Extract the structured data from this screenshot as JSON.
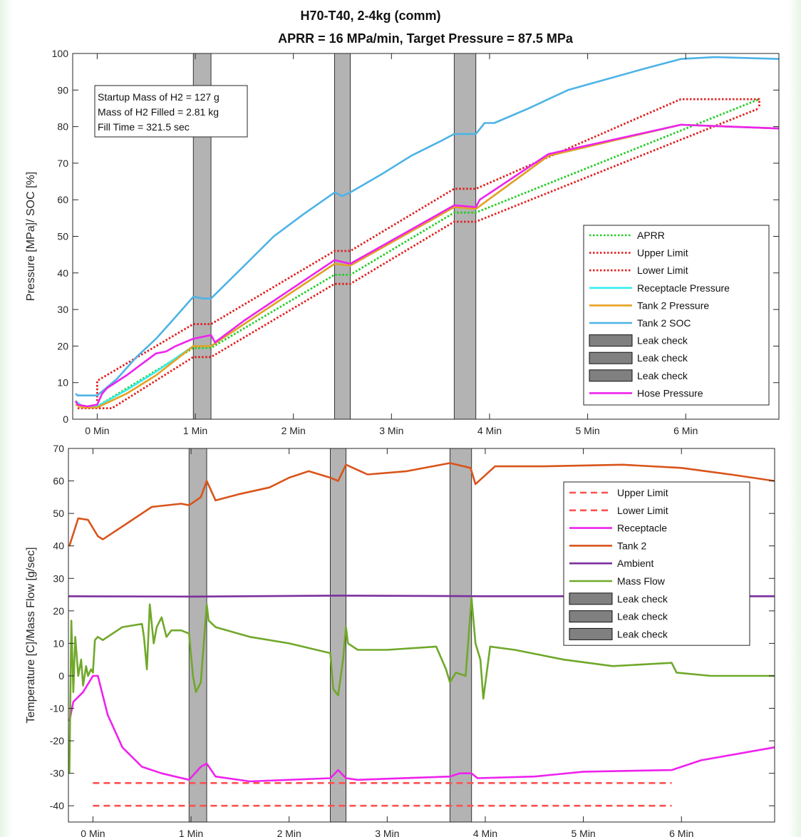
{
  "figure": {
    "title_line1": "H70-T40, 2-4kg (comm)",
    "title_line2": "APRR = 16 MPa/min, Target Pressure = 87.5 MPa"
  },
  "chart_data": [
    {
      "type": "line",
      "ylabel": "Pressure [MPa]/ SOC [%]",
      "xlim": [
        -0.25,
        6.95
      ],
      "ylim": [
        0,
        100
      ],
      "x_ticks": [
        0,
        1,
        2,
        3,
        4,
        5,
        6
      ],
      "x_tick_labels": [
        "0 Min",
        "1 Min",
        "2 Min",
        "3 Min",
        "4 Min",
        "5 Min",
        "6 Min"
      ],
      "y_ticks": [
        0,
        10,
        20,
        30,
        40,
        50,
        60,
        70,
        80,
        90,
        100
      ],
      "grid": false,
      "legend_position": "bottom-right",
      "annotation": {
        "lines": [
          "Startup Mass of H2 = 127 g",
          "Mass of H2 Filled = 2.81 kg",
          "Fill Time = 321.5 sec"
        ]
      },
      "leak_checks": [
        [
          0.98,
          1.16
        ],
        [
          2.42,
          2.58
        ],
        [
          3.64,
          3.86
        ]
      ],
      "series": [
        {
          "name": "APRR",
          "color": "#22cc22",
          "style": "dotted",
          "x": [
            0,
            0.98,
            1.16,
            2.42,
            2.58,
            3.64,
            3.86,
            6.75
          ],
          "y": [
            3.5,
            19.5,
            19.5,
            39.5,
            39.5,
            56.5,
            56.5,
            87.5
          ]
        },
        {
          "name": "Upper Limit",
          "color": "#e02020",
          "style": "dotted",
          "x": [
            0,
            0,
            0.98,
            1.16,
            2.42,
            2.58,
            3.64,
            3.86,
            5.95,
            6.75,
            6.75
          ],
          "y": [
            5,
            10.5,
            26,
            26,
            46,
            46,
            63,
            63,
            87.5,
            87.5,
            85
          ]
        },
        {
          "name": "Lower Limit",
          "color": "#e02020",
          "style": "dotted",
          "x": [
            -0.2,
            0.15,
            0.98,
            1.16,
            2.42,
            2.58,
            3.64,
            3.86,
            6.75
          ],
          "y": [
            3,
            3,
            17,
            17,
            37,
            37,
            54,
            54,
            85
          ]
        },
        {
          "name": "Receptacle Pressure",
          "color": "#33eeee",
          "style": "solid",
          "x": [
            -0.22,
            -0.15,
            0,
            0.3,
            0.6,
            0.98,
            1.16,
            2.42,
            2.58,
            3.64,
            3.86,
            4.6,
            5.95,
            6.95
          ],
          "y": [
            5,
            3.5,
            3.5,
            8,
            13,
            20,
            20,
            42.5,
            42,
            58,
            57.5,
            72,
            80.5,
            79.5
          ]
        },
        {
          "name": "Tank 2 Pressure",
          "color": "#e8a020",
          "style": "solid",
          "x": [
            -0.22,
            -0.15,
            0,
            0.3,
            0.6,
            0.98,
            1.16,
            2.42,
            2.58,
            3.64,
            3.86,
            4.6,
            5.95,
            6.95
          ],
          "y": [
            4,
            3.2,
            3.2,
            7,
            12,
            20,
            20,
            42.5,
            42,
            58,
            57.5,
            72,
            80.5,
            79.5
          ]
        },
        {
          "name": "Tank 2 SOC",
          "color": "#4db3e6",
          "style": "solid",
          "x": [
            -0.22,
            -0.2,
            0,
            0.2,
            0.4,
            0.6,
            0.8,
            0.98,
            1.08,
            1.16,
            1.5,
            1.8,
            2.1,
            2.42,
            2.5,
            2.58,
            2.9,
            3.2,
            3.5,
            3.64,
            3.86,
            3.95,
            4.05,
            4.4,
            4.8,
            5.2,
            5.6,
            5.95,
            6.3,
            6.95
          ],
          "y": [
            7,
            6.5,
            6.5,
            11,
            17,
            22,
            28,
            33.5,
            33,
            33,
            42,
            50,
            56,
            62,
            61,
            62,
            67,
            72,
            76,
            78,
            78,
            81,
            81,
            85,
            90,
            93,
            96,
            98.5,
            99,
            98.5
          ]
        },
        {
          "name": "Leak check",
          "color": "#b0b0b0",
          "style": "patch"
        },
        {
          "name": "Leak check",
          "color": "#b0b0b0",
          "style": "patch"
        },
        {
          "name": "Leak check",
          "color": "#b0b0b0",
          "style": "patch"
        },
        {
          "name": "Hose Pressure",
          "color": "#ee22ee",
          "style": "solid",
          "x": [
            -0.22,
            -0.2,
            -0.1,
            0,
            0.05,
            0.1,
            0.3,
            0.5,
            0.6,
            0.7,
            0.8,
            0.98,
            1.16,
            1.2,
            1.5,
            2.42,
            2.58,
            3.64,
            3.86,
            3.9,
            4.6,
            5.95,
            6.95
          ],
          "y": [
            5,
            4,
            3.5,
            4,
            7,
            8.5,
            12,
            16,
            18,
            18.5,
            20,
            22,
            23,
            21,
            27,
            43.5,
            42.5,
            58.5,
            58,
            60,
            72.5,
            80.5,
            79.5
          ]
        }
      ]
    },
    {
      "type": "line",
      "ylabel": "Temperature [C]/Mass Flow [g/sec]",
      "xlim": [
        -0.25,
        6.95
      ],
      "ylim": [
        -45,
        70
      ],
      "x_ticks": [
        0,
        1,
        2,
        3,
        4,
        5,
        6
      ],
      "x_tick_labels": [
        "0 Min",
        "1 Min",
        "2 Min",
        "3 Min",
        "4 Min",
        "5 Min",
        "6 Min"
      ],
      "y_ticks": [
        -40,
        -30,
        -20,
        -10,
        0,
        10,
        20,
        30,
        40,
        50,
        60,
        70
      ],
      "grid": false,
      "legend_position": "top-right",
      "leak_checks": [
        [
          0.98,
          1.16
        ],
        [
          2.42,
          2.58
        ],
        [
          3.64,
          3.86
        ]
      ],
      "series": [
        {
          "name": "Upper Limit",
          "color": "#ff5050",
          "style": "dashed",
          "x": [
            0,
            5.9
          ],
          "y": [
            -33,
            -33
          ]
        },
        {
          "name": "Lower Limit",
          "color": "#ff5050",
          "style": "dashed",
          "x": [
            0,
            5.9
          ],
          "y": [
            -40,
            -40
          ]
        },
        {
          "name": "Receptacle",
          "color": "#ee22ee",
          "style": "solid",
          "x": [
            -0.24,
            -0.2,
            -0.1,
            0,
            0.05,
            0.15,
            0.3,
            0.5,
            0.7,
            0.98,
            1.1,
            1.16,
            1.25,
            1.6,
            2.42,
            2.5,
            2.58,
            2.7,
            3.64,
            3.74,
            3.86,
            3.92,
            4.5,
            5,
            5.9,
            6.2,
            6.95
          ],
          "y": [
            -14,
            -8,
            -5,
            0,
            0,
            -12,
            -22,
            -28,
            -30,
            -32,
            -28,
            -27,
            -31,
            -32.5,
            -31.5,
            -29,
            -31.5,
            -32,
            -31,
            -30,
            -30,
            -31.5,
            -31,
            -29.5,
            -29,
            -26,
            -22
          ]
        },
        {
          "name": "Tank 2",
          "color": "#d9541a",
          "style": "solid",
          "x": [
            -0.24,
            -0.15,
            -0.05,
            0.05,
            0.1,
            0.3,
            0.6,
            0.9,
            0.98,
            1.1,
            1.16,
            1.25,
            1.5,
            1.8,
            2.0,
            2.2,
            2.42,
            2.5,
            2.58,
            2.8,
            3.2,
            3.64,
            3.85,
            3.9,
            4.1,
            4.6,
            5.4,
            6.0,
            6.5,
            6.95
          ],
          "y": [
            40,
            48.5,
            48,
            43,
            42,
            46,
            52,
            53,
            52.5,
            55,
            60,
            54,
            56,
            58,
            61,
            63,
            61,
            60,
            65,
            62,
            63,
            65.5,
            64,
            59,
            64.5,
            64.5,
            65,
            64,
            62,
            60
          ]
        },
        {
          "name": "Ambient",
          "color": "#7b2f9e",
          "style": "solid",
          "x": [
            -0.25,
            1,
            2.5,
            4,
            6.95
          ],
          "y": [
            24.5,
            24.4,
            24.7,
            24.5,
            24.5
          ]
        },
        {
          "name": "Mass Flow",
          "color": "#70a82a",
          "style": "solid",
          "x": [
            -0.24,
            -0.22,
            -0.2,
            -0.18,
            -0.15,
            -0.12,
            -0.1,
            -0.07,
            -0.05,
            -0.02,
            0,
            0.02,
            0.05,
            0.1,
            0.3,
            0.5,
            0.52,
            0.55,
            0.58,
            0.62,
            0.65,
            0.7,
            0.75,
            0.8,
            0.9,
            0.98,
            1.02,
            1.05,
            1.1,
            1.16,
            1.18,
            1.25,
            1.6,
            2.0,
            2.42,
            2.45,
            2.5,
            2.55,
            2.58,
            2.6,
            2.7,
            3.0,
            3.5,
            3.6,
            3.64,
            3.7,
            3.8,
            3.86,
            3.9,
            3.95,
            3.98,
            4.05,
            4.3,
            4.8,
            5.3,
            5.9,
            5.95,
            6.3,
            6.6,
            6.95
          ],
          "y": [
            -30,
            17,
            -5,
            12,
            0,
            5,
            -3,
            3,
            0,
            2,
            1,
            11,
            12,
            11,
            15,
            16,
            12,
            2,
            22,
            10,
            15,
            18,
            12,
            14,
            14,
            13,
            0,
            -5,
            -2,
            22,
            17,
            15,
            12,
            10,
            7,
            -4,
            -6,
            5,
            15,
            10,
            8,
            8,
            9,
            2,
            -2,
            1,
            0,
            24,
            10,
            5,
            -7,
            9,
            8,
            5,
            3,
            4,
            1,
            0,
            0,
            0
          ]
        },
        {
          "name": "Leak check",
          "color": "#b0b0b0",
          "style": "patch"
        },
        {
          "name": "Leak check",
          "color": "#b0b0b0",
          "style": "patch"
        },
        {
          "name": "Leak check",
          "color": "#b0b0b0",
          "style": "patch"
        }
      ]
    }
  ]
}
